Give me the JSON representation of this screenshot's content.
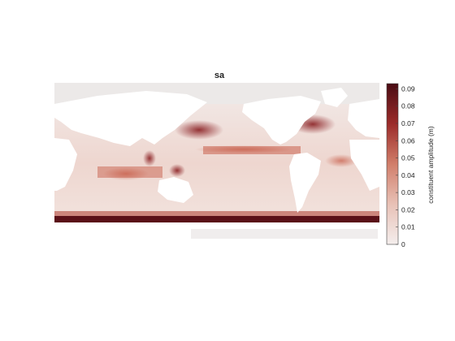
{
  "title": "sa",
  "colorbar": {
    "label": "constituent amplitude (m)",
    "ticks": [
      "0",
      "0.01",
      "0.02",
      "0.03",
      "0.04",
      "0.05",
      "0.06",
      "0.07",
      "0.08",
      "0.09"
    ],
    "range": [
      0,
      0.093
    ],
    "colors": {
      "low": "#f4eeed",
      "mid": "#c8604c",
      "high": "#4a0c14"
    }
  },
  "map": {
    "land_color": "#ffffff",
    "no_data_color": "#ece9e8",
    "variable": "constituent amplitude",
    "units": "m"
  }
}
